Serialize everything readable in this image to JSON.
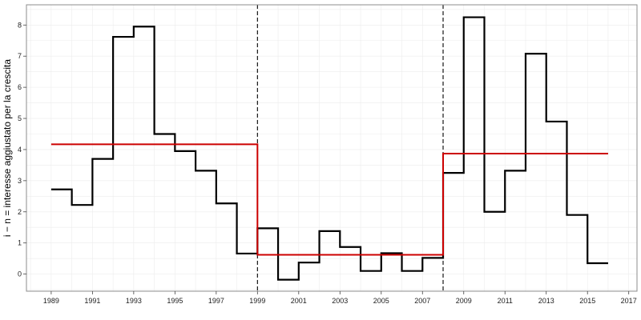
{
  "chart_data": {
    "type": "line",
    "step": true,
    "title": "",
    "xlabel": "",
    "ylabel": "i − n = interesse aggiustato per la crescita",
    "xlim": [
      1987.8,
      2017.4
    ],
    "ylim": [
      -0.55,
      8.65
    ],
    "grid": true,
    "legend": "none",
    "x_ticks": [
      1989,
      1991,
      1993,
      1995,
      1997,
      1999,
      2001,
      2003,
      2005,
      2007,
      2009,
      2011,
      2013,
      2015,
      2017
    ],
    "y_ticks": [
      0,
      1,
      2,
      3,
      4,
      5,
      6,
      7,
      8
    ],
    "series": [
      {
        "color": "#000000",
        "x": [
          1989,
          1990,
          1991,
          1992,
          1993,
          1994,
          1995,
          1996,
          1997,
          1998,
          1999,
          2000,
          2001,
          2002,
          2003,
          2004,
          2005,
          2006,
          2007,
          2008,
          2009,
          2010,
          2011,
          2012,
          2013,
          2014,
          2015,
          2016
        ],
        "values": [
          2.72,
          2.22,
          3.7,
          7.62,
          7.95,
          4.5,
          3.95,
          3.32,
          2.27,
          0.66,
          1.47,
          -0.18,
          0.37,
          1.38,
          0.87,
          0.1,
          0.67,
          0.1,
          0.52,
          3.25,
          8.25,
          2.0,
          3.32,
          7.08,
          4.9,
          1.9,
          0.35,
          0.35
        ]
      },
      {
        "color": "#cc0000",
        "x": [
          1989,
          1999,
          2008,
          2016
        ],
        "values": [
          4.17,
          0.62,
          3.87,
          3.87
        ]
      }
    ],
    "vlines": [
      1999,
      2008
    ]
  }
}
